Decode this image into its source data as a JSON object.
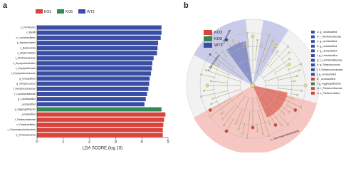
{
  "chart_data": {
    "type": "hbar",
    "panel_label": "a",
    "xlabel": "LDA SCORE (log 10)",
    "categories": [
      "p_Firmicutes",
      "c_Bacilli",
      "o_Lactobacillales",
      "p_Bacteroidetes",
      "c_Bacteroidia",
      "o_Bacteroidales",
      "f_Muribaculaceae",
      "o_Erysipelotrichales",
      "c_Erysipelotrichia",
      "f_Erysipelotrichaceae",
      "g_unclassified",
      "g_Streptococcus",
      "f_Streptococcaceae",
      "f_Lactobacillaceae",
      "g_Lactobacillus",
      "_unclassified",
      "g_Aggregatibacter",
      "_unclassified",
      "f_Pasteurellaceae",
      "o_Pasteurellales",
      "c_Gammaproteobacteria",
      "p_Proteobacteria"
    ],
    "series": [
      {
        "name": "KO3",
        "color": "#d9443c",
        "values": [
          null,
          null,
          null,
          null,
          null,
          null,
          null,
          null,
          null,
          null,
          null,
          null,
          null,
          null,
          null,
          null,
          null,
          4.9,
          4.85,
          4.82,
          4.8,
          4.8
        ]
      },
      {
        "name": "KO6",
        "color": "#2f8a55",
        "values": [
          null,
          null,
          null,
          null,
          null,
          null,
          null,
          null,
          null,
          null,
          null,
          null,
          null,
          null,
          null,
          null,
          4.75,
          null,
          null,
          null,
          null,
          null
        ]
      },
      {
        "name": "WT3",
        "color": "#3b4ea6",
        "values": [
          4.75,
          4.75,
          4.72,
          4.62,
          4.6,
          4.58,
          4.45,
          4.4,
          4.38,
          4.35,
          4.3,
          4.28,
          4.25,
          4.2,
          4.15,
          4.1,
          null,
          null,
          null,
          null,
          null,
          null
        ]
      }
    ],
    "xlim": [
      0,
      5
    ],
    "xticks": [
      0,
      1,
      2,
      3,
      4,
      5
    ],
    "grid": false
  },
  "cladogram": {
    "panel_label": "b",
    "legend": [
      {
        "name": "KO3",
        "color": "#d9443c"
      },
      {
        "name": "KO6",
        "color": "#2f8a55"
      },
      {
        "name": "WT3",
        "color": "#3b4ea6"
      }
    ],
    "sector_labels": [
      "p_Bacteroidetes",
      "c_Bacteroidia",
      "c_Gammaproteobacteria"
    ],
    "key": [
      {
        "label": "a: g_unclassified",
        "color": "#3b4ea6"
      },
      {
        "label": "b: f_Muribaculaceae",
        "color": "#3b4ea6"
      },
      {
        "label": "c: g_unclassified",
        "color": "#3b4ea6"
      },
      {
        "label": "d: g_unclassified",
        "color": "#3b4ea6"
      },
      {
        "label": "e: g_unclassified",
        "color": "#3b4ea6"
      },
      {
        "label": "f: g_Lactobacillus",
        "color": "#3b4ea6"
      },
      {
        "label": "g: f_Lactobacillaceae",
        "color": "#3b4ea6"
      },
      {
        "label": "h: g_Streptococcus",
        "color": "#3b4ea6"
      },
      {
        "label": "i: f_Streptococcaceae",
        "color": "#3b4ea6"
      },
      {
        "label": "j: g_unclassified",
        "color": "#3b4ea6"
      },
      {
        "label": "k: _unclassified",
        "color": "#d9443c"
      },
      {
        "label": "l: g_Aggregatibacter",
        "color": "#2f8a55"
      },
      {
        "label": "m: f_Pasteurellaceae",
        "color": "#d9443c"
      },
      {
        "label": "n: o_Pasteurellales",
        "color": "#d9443c"
      }
    ]
  }
}
